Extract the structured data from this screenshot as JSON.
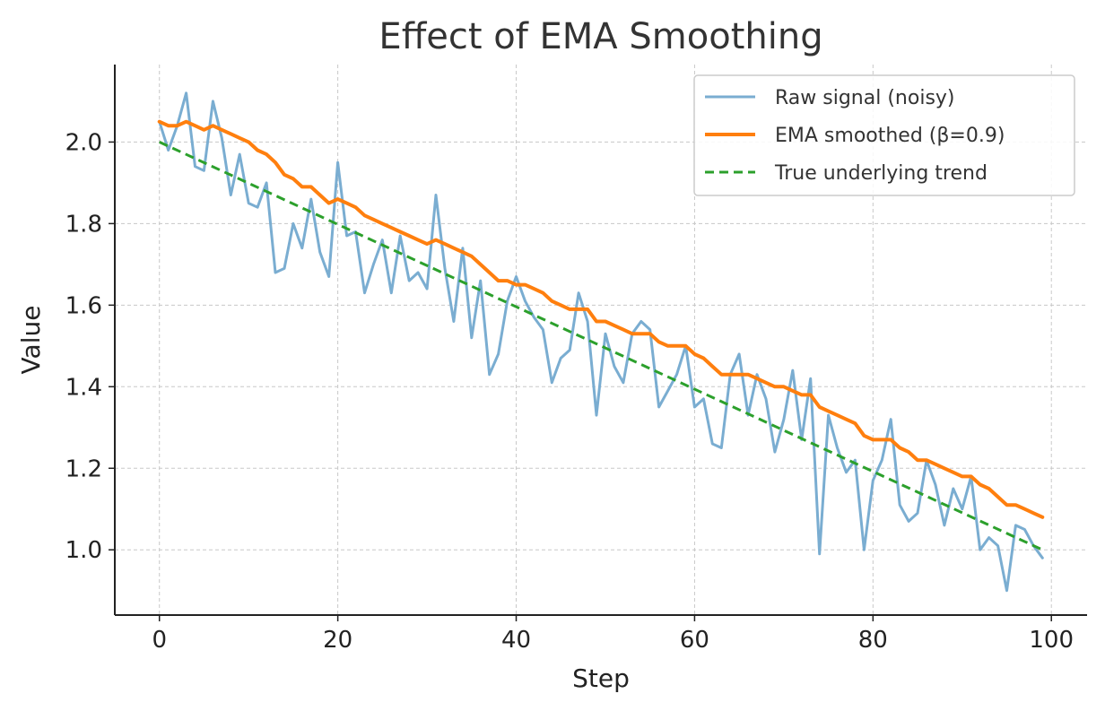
{
  "chart_data": {
    "type": "line",
    "title": "Effect of EMA Smoothing",
    "xlabel": "Step",
    "ylabel": "Value",
    "xlim": [
      -5,
      104
    ],
    "ylim": [
      0.84,
      2.19
    ],
    "xticks": [
      0,
      20,
      40,
      60,
      80,
      100
    ],
    "yticks": [
      1.0,
      1.2,
      1.4,
      1.6,
      1.8,
      2.0
    ],
    "xtick_labels": [
      "0",
      "20",
      "40",
      "60",
      "80",
      "100"
    ],
    "ytick_labels": [
      "1.0",
      "1.2",
      "1.4",
      "1.6",
      "1.8",
      "2.0"
    ],
    "grid": true,
    "legend_position": "top-right",
    "series": [
      {
        "name": "Raw signal (noisy)",
        "color": "#7aadd1",
        "style": "solid",
        "x": [
          0,
          1,
          2,
          3,
          4,
          5,
          6,
          7,
          8,
          9,
          10,
          11,
          12,
          13,
          14,
          15,
          16,
          17,
          18,
          19,
          20,
          21,
          22,
          23,
          24,
          25,
          26,
          27,
          28,
          29,
          30,
          31,
          32,
          33,
          34,
          35,
          36,
          37,
          38,
          39,
          40,
          41,
          42,
          43,
          44,
          45,
          46,
          47,
          48,
          49,
          50,
          51,
          52,
          53,
          54,
          55,
          56,
          57,
          58,
          59,
          60,
          61,
          62,
          63,
          64,
          65,
          66,
          67,
          68,
          69,
          70,
          71,
          72,
          73,
          74,
          75,
          76,
          77,
          78,
          79,
          80,
          81,
          82,
          83,
          84,
          85,
          86,
          87,
          88,
          89,
          90,
          91,
          92,
          93,
          94,
          95,
          96,
          97,
          98,
          99
        ],
        "values": [
          2.05,
          1.98,
          2.04,
          2.12,
          1.94,
          1.93,
          2.1,
          2.01,
          1.87,
          1.97,
          1.85,
          1.84,
          1.9,
          1.68,
          1.69,
          1.8,
          1.74,
          1.86,
          1.73,
          1.67,
          1.95,
          1.77,
          1.78,
          1.63,
          1.7,
          1.76,
          1.63,
          1.77,
          1.66,
          1.68,
          1.64,
          1.87,
          1.69,
          1.56,
          1.74,
          1.52,
          1.66,
          1.43,
          1.48,
          1.61,
          1.67,
          1.61,
          1.57,
          1.54,
          1.41,
          1.47,
          1.49,
          1.63,
          1.56,
          1.33,
          1.53,
          1.45,
          1.41,
          1.53,
          1.56,
          1.54,
          1.35,
          1.39,
          1.43,
          1.5,
          1.35,
          1.37,
          1.26,
          1.25,
          1.43,
          1.48,
          1.33,
          1.43,
          1.37,
          1.24,
          1.32,
          1.44,
          1.27,
          1.42,
          0.99,
          1.33,
          1.25,
          1.19,
          1.22,
          1.0,
          1.17,
          1.22,
          1.32,
          1.11,
          1.07,
          1.09,
          1.22,
          1.16,
          1.06,
          1.15,
          1.1,
          1.18,
          1.0,
          1.03,
          1.01,
          0.9,
          1.06,
          1.05,
          1.01,
          0.98
        ]
      },
      {
        "name": "EMA smoothed (β=0.9)",
        "color": "#ff7f0e",
        "style": "solid",
        "x": [
          0,
          1,
          2,
          3,
          4,
          5,
          6,
          7,
          8,
          9,
          10,
          11,
          12,
          13,
          14,
          15,
          16,
          17,
          18,
          19,
          20,
          21,
          22,
          23,
          24,
          25,
          26,
          27,
          28,
          29,
          30,
          31,
          32,
          33,
          34,
          35,
          36,
          37,
          38,
          39,
          40,
          41,
          42,
          43,
          44,
          45,
          46,
          47,
          48,
          49,
          50,
          51,
          52,
          53,
          54,
          55,
          56,
          57,
          58,
          59,
          60,
          61,
          62,
          63,
          64,
          65,
          66,
          67,
          68,
          69,
          70,
          71,
          72,
          73,
          74,
          75,
          76,
          77,
          78,
          79,
          80,
          81,
          82,
          83,
          84,
          85,
          86,
          87,
          88,
          89,
          90,
          91,
          92,
          93,
          94,
          95,
          96,
          97,
          98,
          99
        ],
        "values": [
          2.05,
          2.04,
          2.04,
          2.05,
          2.04,
          2.03,
          2.04,
          2.03,
          2.02,
          2.01,
          2.0,
          1.98,
          1.97,
          1.95,
          1.92,
          1.91,
          1.89,
          1.89,
          1.87,
          1.85,
          1.86,
          1.85,
          1.84,
          1.82,
          1.81,
          1.8,
          1.79,
          1.78,
          1.77,
          1.76,
          1.75,
          1.76,
          1.75,
          1.74,
          1.73,
          1.72,
          1.7,
          1.68,
          1.66,
          1.66,
          1.65,
          1.65,
          1.64,
          1.63,
          1.61,
          1.6,
          1.59,
          1.59,
          1.59,
          1.56,
          1.56,
          1.55,
          1.54,
          1.53,
          1.53,
          1.53,
          1.51,
          1.5,
          1.5,
          1.5,
          1.48,
          1.47,
          1.45,
          1.43,
          1.43,
          1.43,
          1.43,
          1.42,
          1.41,
          1.4,
          1.4,
          1.39,
          1.38,
          1.38,
          1.35,
          1.34,
          1.33,
          1.32,
          1.31,
          1.28,
          1.27,
          1.27,
          1.27,
          1.25,
          1.24,
          1.22,
          1.22,
          1.21,
          1.2,
          1.19,
          1.18,
          1.18,
          1.16,
          1.15,
          1.13,
          1.11,
          1.11,
          1.1,
          1.09,
          1.08
        ]
      },
      {
        "name": "True underlying trend",
        "color": "#2ca02c",
        "style": "dashed",
        "x": [
          0,
          99
        ],
        "values": [
          2.0,
          1.0
        ]
      }
    ]
  }
}
